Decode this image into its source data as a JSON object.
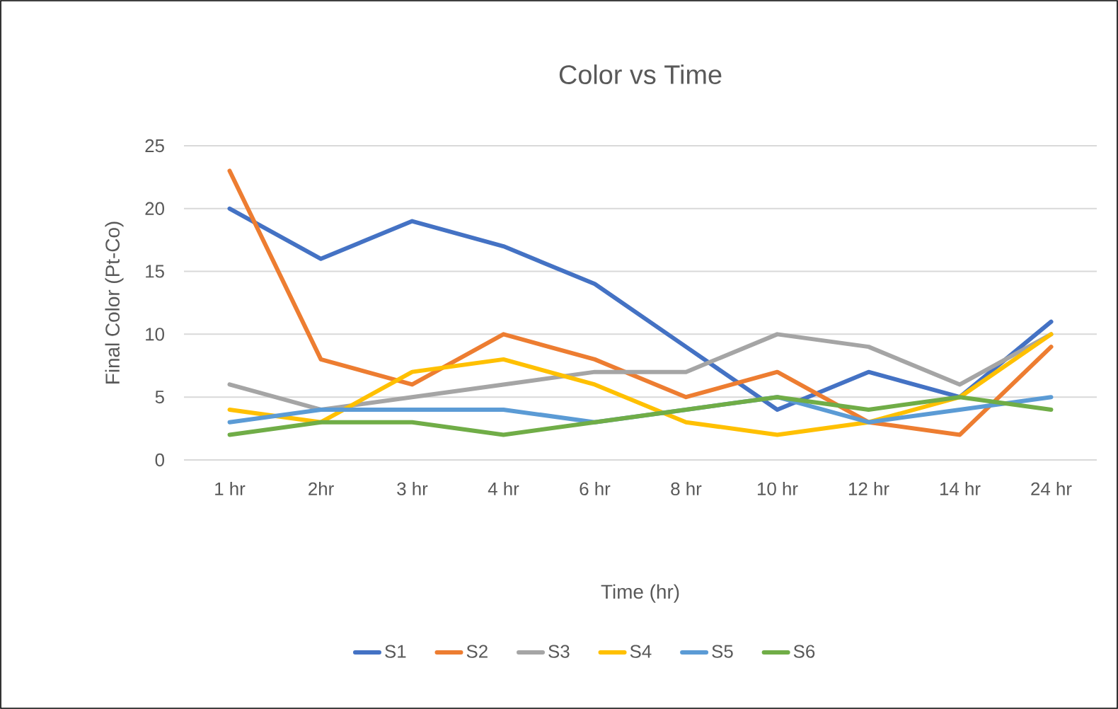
{
  "chart_data": {
    "type": "line",
    "title": "Color vs Time",
    "xlabel": "Time (hr)",
    "ylabel": "Final Color (Pt-Co)",
    "categories": [
      "1 hr",
      "2hr",
      "3 hr",
      "4 hr",
      "6 hr",
      "8 hr",
      "10 hr",
      "12 hr",
      "14 hr",
      "24 hr"
    ],
    "series": [
      {
        "name": "S1",
        "color": "#4472c4",
        "values": [
          20,
          16,
          19,
          17,
          14,
          9,
          4,
          7,
          5,
          11
        ]
      },
      {
        "name": "S2",
        "color": "#ed7d31",
        "values": [
          23,
          8,
          6,
          10,
          8,
          5,
          7,
          3,
          2,
          9
        ]
      },
      {
        "name": "S3",
        "color": "#a5a5a5",
        "values": [
          6,
          4,
          5,
          6,
          7,
          7,
          10,
          9,
          6,
          10
        ]
      },
      {
        "name": "S4",
        "color": "#ffc000",
        "values": [
          4,
          3,
          7,
          8,
          6,
          3,
          2,
          3,
          5,
          10
        ]
      },
      {
        "name": "S5",
        "color": "#5b9bd5",
        "values": [
          3,
          4,
          4,
          4,
          3,
          4,
          5,
          3,
          4,
          5
        ]
      },
      {
        "name": "S6",
        "color": "#70ad47",
        "values": [
          2,
          3,
          3,
          2,
          3,
          4,
          5,
          4,
          5,
          4
        ]
      }
    ],
    "ylim": [
      0,
      25
    ],
    "yticks": [
      0,
      5,
      10,
      15,
      20,
      25
    ],
    "grid": "y",
    "legend": "bottom",
    "marker": "none",
    "line_style": "solid"
  }
}
